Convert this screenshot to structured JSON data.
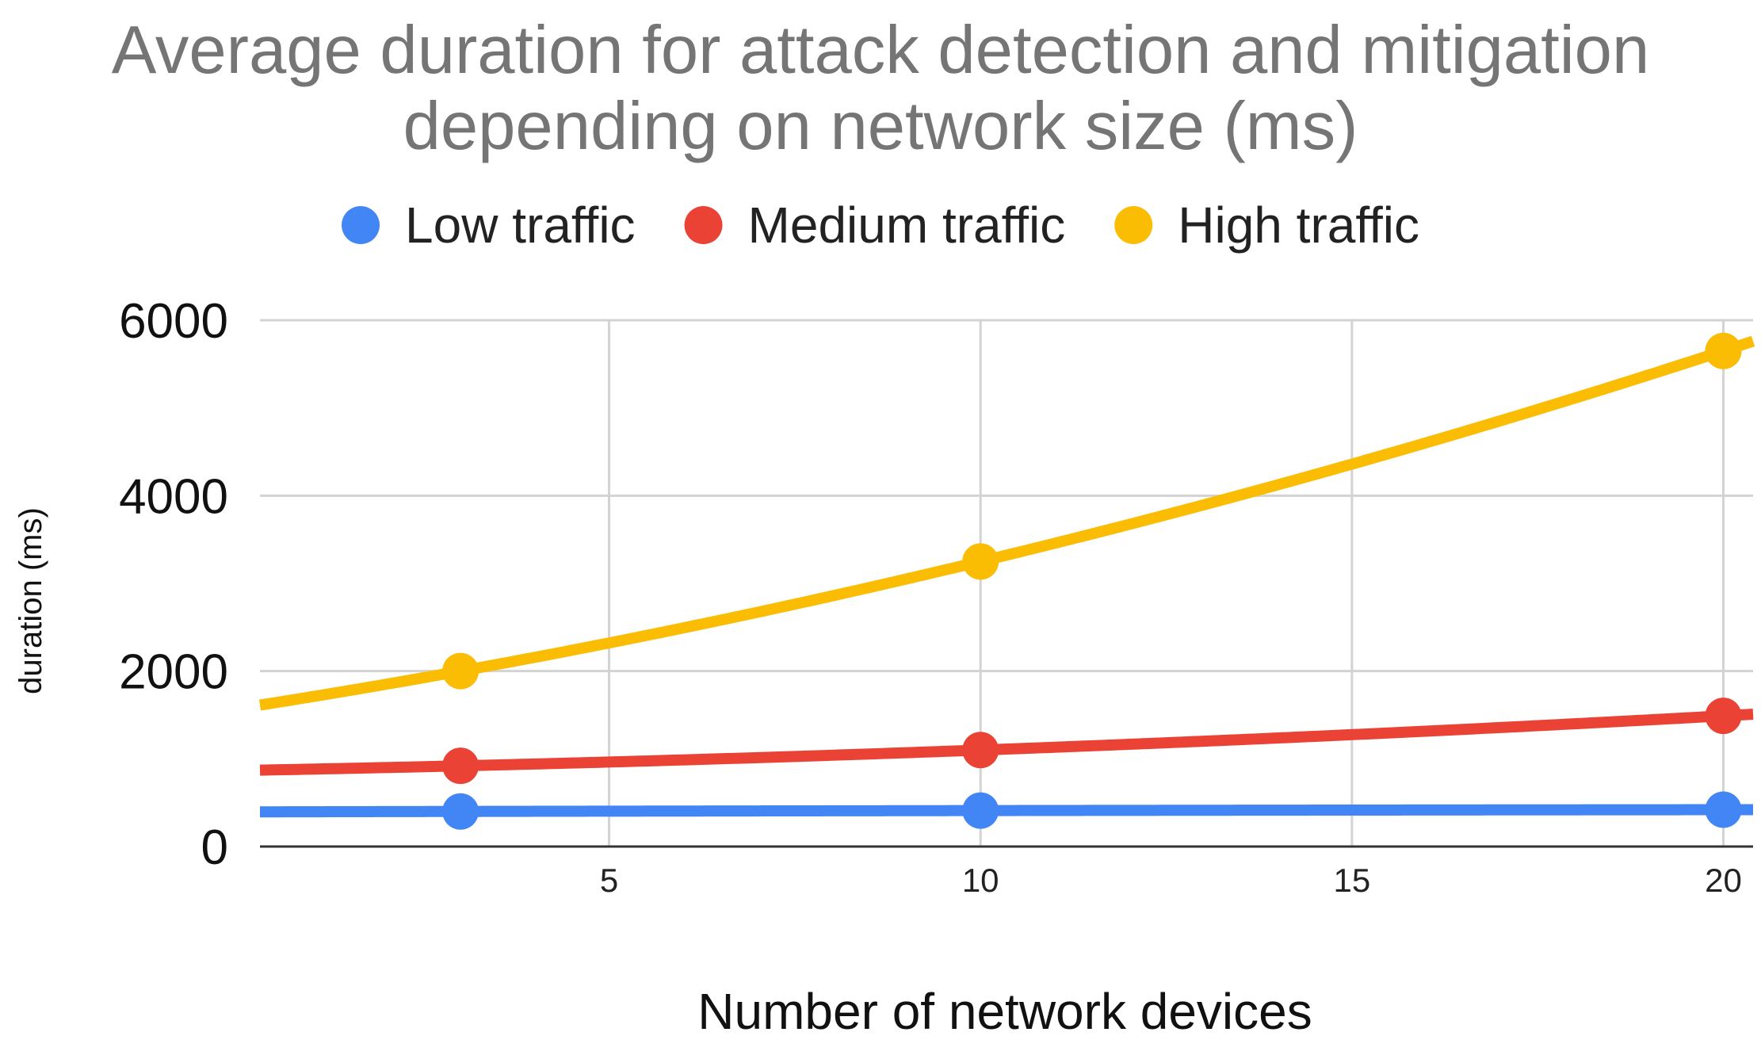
{
  "chart_data": {
    "type": "line",
    "title_lines": [
      "Average duration for attack detection and mitigation",
      "depending on network size (ms)"
    ],
    "xlabel": "Number of network devices",
    "ylabel": "duration (ms)",
    "xlim": [
      0.3,
      20.4
    ],
    "ylim": [
      0,
      6000
    ],
    "xticks": [
      5,
      10,
      15,
      20
    ],
    "yticks": [
      0,
      2000,
      4000,
      6000
    ],
    "grid": true,
    "legend_position": "top",
    "smooth": true,
    "series": [
      {
        "name": "Low traffic",
        "color": "#4285F4",
        "x": [
          3,
          10,
          20
        ],
        "y": [
          400,
          410,
          420
        ]
      },
      {
        "name": "Medium traffic",
        "color": "#EA4335",
        "x": [
          3,
          10,
          20
        ],
        "y": [
          920,
          1100,
          1490
        ]
      },
      {
        "name": "High traffic",
        "color": "#FBBC04",
        "x": [
          3,
          10,
          20
        ],
        "y": [
          2000,
          3250,
          5650
        ]
      }
    ]
  }
}
